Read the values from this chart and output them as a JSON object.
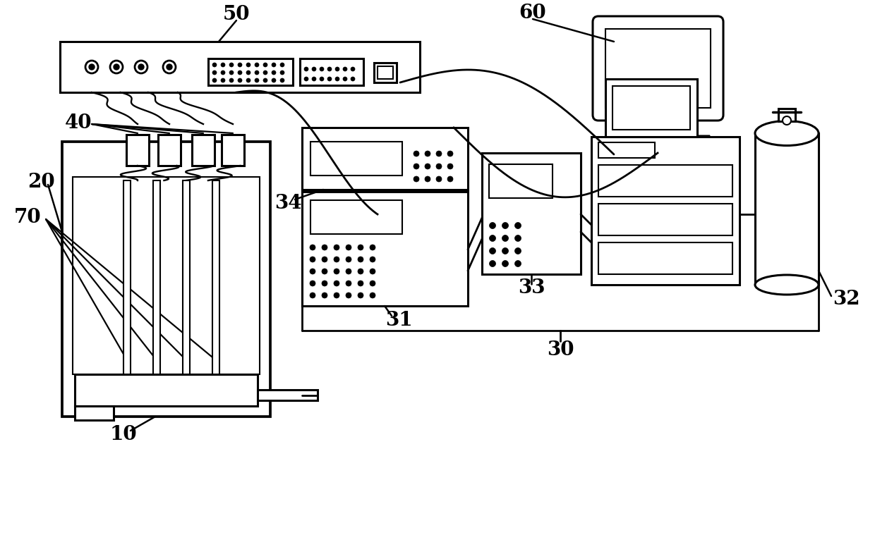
{
  "background_color": "#ffffff",
  "figsize": [
    12.4,
    7.59
  ],
  "dpi": 100,
  "lw_main": 2.2,
  "lw_thin": 1.5,
  "lw_cable": 2.0
}
